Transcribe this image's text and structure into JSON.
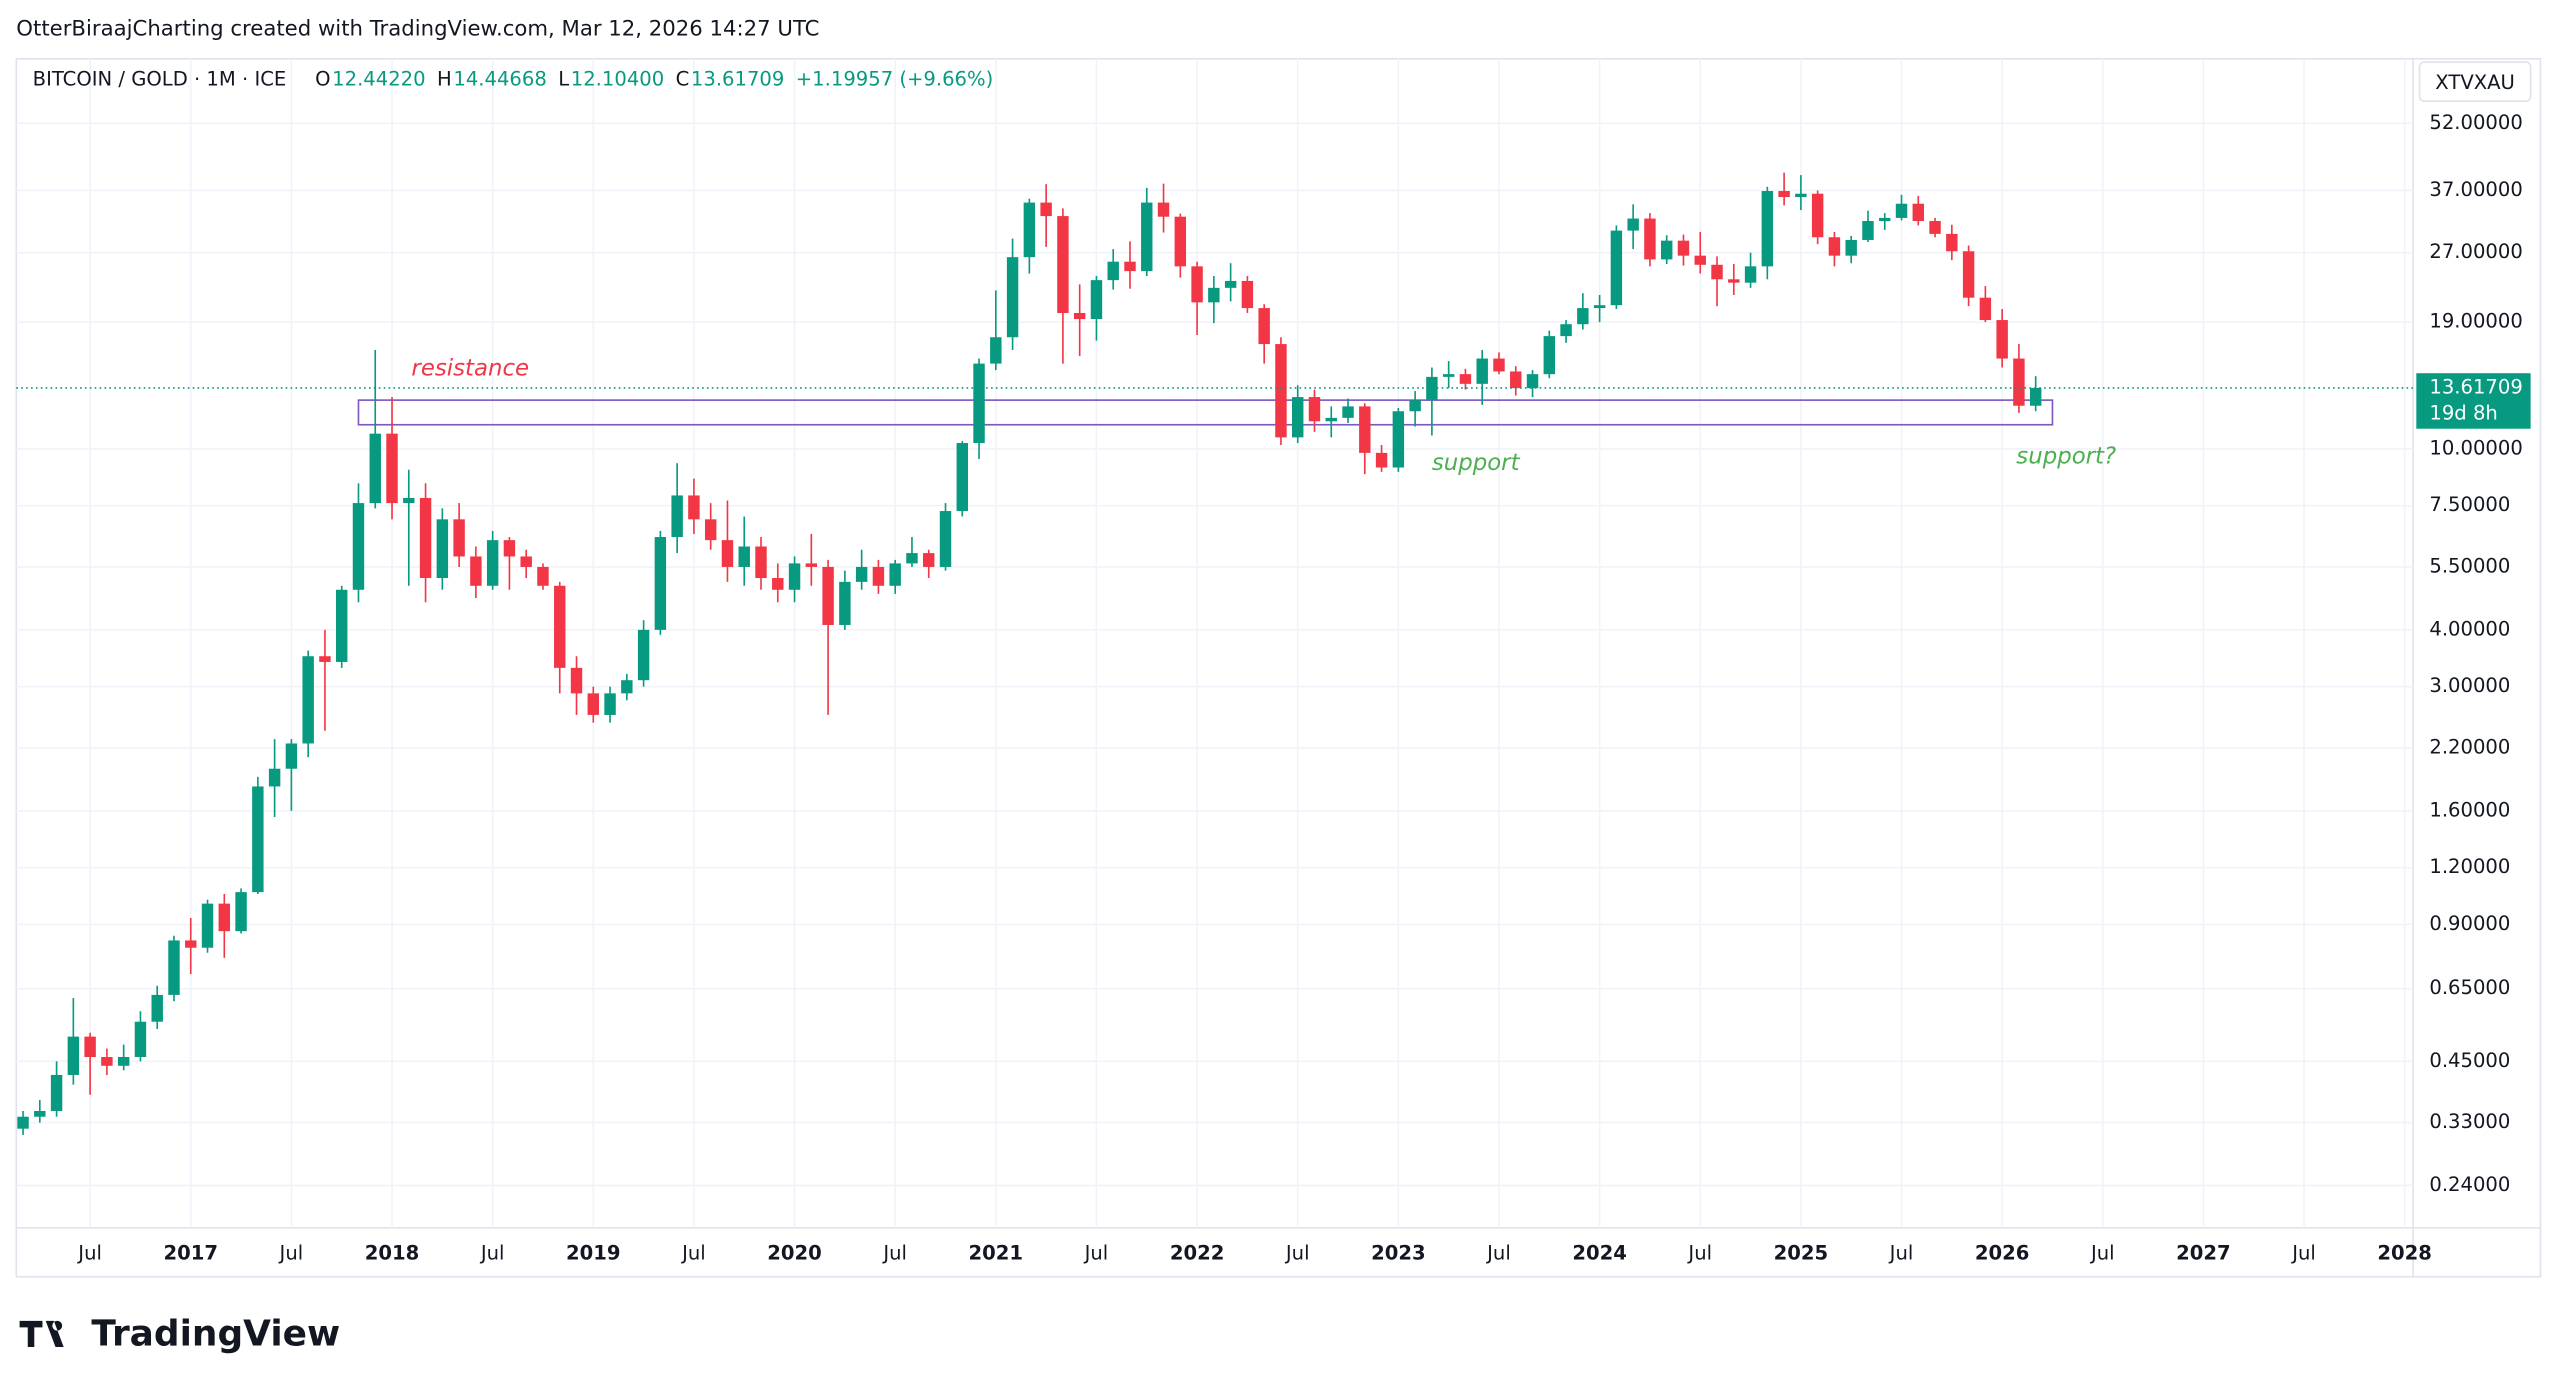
{
  "header": {
    "credit": "OtterBiraajCharting created with TradingView.com, Mar 12, 2026 14:27 UTC",
    "logo": "TradingView"
  },
  "legend": {
    "symbol": "BITCOIN / GOLD · 1M · ICE",
    "ohlc": [
      {
        "key": "O",
        "label": "12.44220"
      },
      {
        "key": "H",
        "label": "14.44668"
      },
      {
        "key": "L",
        "label": "12.10400"
      },
      {
        "key": "C",
        "label": "13.61709"
      }
    ],
    "change": "+1.19957 (+9.66%)"
  },
  "ticker_box": "XTVXAU",
  "price_label": {
    "price": "13.61709",
    "countdown": "19d 8h"
  },
  "chart_data": {
    "type": "candlestick",
    "log_scale": true,
    "grid": true,
    "up_color": "#089981",
    "down_color": "#f23645",
    "x": [
      "2016-03",
      "2016-04",
      "2016-05",
      "2016-06",
      "2016-07",
      "2016-08",
      "2016-09",
      "2016-10",
      "2016-11",
      "2016-12",
      "2017-01",
      "2017-02",
      "2017-03",
      "2017-04",
      "2017-05",
      "2017-06",
      "2017-07",
      "2017-08",
      "2017-09",
      "2017-10",
      "2017-11",
      "2017-12",
      "2018-01",
      "2018-02",
      "2018-03",
      "2018-04",
      "2018-05",
      "2018-06",
      "2018-07",
      "2018-08",
      "2018-09",
      "2018-10",
      "2018-11",
      "2018-12",
      "2019-01",
      "2019-02",
      "2019-03",
      "2019-04",
      "2019-05",
      "2019-06",
      "2019-07",
      "2019-08",
      "2019-09",
      "2019-10",
      "2019-11",
      "2019-12",
      "2020-01",
      "2020-02",
      "2020-03",
      "2020-04",
      "2020-05",
      "2020-06",
      "2020-07",
      "2020-08",
      "2020-09",
      "2020-10",
      "2020-11",
      "2020-12",
      "2021-01",
      "2021-02",
      "2021-03",
      "2021-04",
      "2021-05",
      "2021-06",
      "2021-07",
      "2021-08",
      "2021-09",
      "2021-10",
      "2021-11",
      "2021-12",
      "2022-01",
      "2022-02",
      "2022-03",
      "2022-04",
      "2022-05",
      "2022-06",
      "2022-07",
      "2022-08",
      "2022-09",
      "2022-10",
      "2022-11",
      "2022-12",
      "2023-01",
      "2023-02",
      "2023-03",
      "2023-04",
      "2023-05",
      "2023-06",
      "2023-07",
      "2023-08",
      "2023-09",
      "2023-10",
      "2023-11",
      "2023-12",
      "2024-01",
      "2024-02",
      "2024-03",
      "2024-04",
      "2024-05",
      "2024-06",
      "2024-07",
      "2024-08",
      "2024-09",
      "2024-10",
      "2024-11",
      "2024-12",
      "2025-01",
      "2025-02",
      "2025-03",
      "2025-04",
      "2025-05",
      "2025-06",
      "2025-07",
      "2025-08",
      "2025-09",
      "2025-10",
      "2025-11",
      "2025-12",
      "2026-01",
      "2026-02",
      "2026-03"
    ],
    "open": [
      0.32,
      0.34,
      0.35,
      0.42,
      0.51,
      0.46,
      0.44,
      0.46,
      0.55,
      0.63,
      0.83,
      0.8,
      1.0,
      0.87,
      1.06,
      1.81,
      1.98,
      2.25,
      3.5,
      3.4,
      4.9,
      7.6,
      10.8,
      7.6,
      7.8,
      5.2,
      7.0,
      5.8,
      5.0,
      6.3,
      5.8,
      5.5,
      5.0,
      3.3,
      2.9,
      2.6,
      2.9,
      3.1,
      4.0,
      6.4,
      7.9,
      7.0,
      6.3,
      5.5,
      6.1,
      5.2,
      4.9,
      5.6,
      5.5,
      4.1,
      5.1,
      5.5,
      5.0,
      5.6,
      5.9,
      5.5,
      7.3,
      10.3,
      15.4,
      17.6,
      26.4,
      34.8,
      32.5,
      19.9,
      19.3,
      23.5,
      25.8,
      24.6,
      34.8,
      32.4,
      25.2,
      21.0,
      22.6,
      23.4,
      20.4,
      17.0,
      10.6,
      13.0,
      11.5,
      11.7,
      12.4,
      9.8,
      9.1,
      12.1,
      12.8,
      14.4,
      14.6,
      13.9,
      15.8,
      14.8,
      13.6,
      14.6,
      17.7,
      18.8,
      20.4,
      20.7,
      30.2,
      32.1,
      26.1,
      28.7,
      26.6,
      25.4,
      23.6,
      23.2,
      25.2,
      36.9,
      35.8,
      36.4,
      29.2,
      26.6,
      28.8,
      31.7,
      32.2,
      34.6,
      31.7,
      29.7,
      27.2,
      21.5,
      19.2,
      15.8,
      12.4422
    ],
    "high": [
      0.35,
      0.37,
      0.45,
      0.62,
      0.52,
      0.48,
      0.49,
      0.58,
      0.66,
      0.85,
      0.93,
      1.02,
      1.05,
      1.08,
      1.9,
      2.3,
      2.3,
      3.6,
      4.0,
      5.0,
      8.4,
      16.5,
      13.0,
      9.0,
      8.4,
      7.4,
      7.6,
      6.1,
      6.6,
      6.4,
      6.0,
      5.6,
      5.1,
      3.5,
      3.0,
      3.0,
      3.2,
      4.2,
      6.6,
      9.3,
      8.6,
      7.6,
      7.7,
      7.1,
      6.4,
      5.6,
      5.8,
      6.5,
      5.7,
      5.4,
      6.0,
      5.7,
      5.7,
      6.4,
      6.0,
      7.6,
      10.4,
      15.8,
      22.3,
      29.0,
      35.5,
      38.2,
      33.8,
      23.0,
      24.0,
      27.5,
      28.6,
      37.5,
      38.3,
      32.9,
      25.8,
      24.0,
      25.6,
      24.0,
      20.8,
      17.6,
      13.8,
      13.5,
      12.4,
      12.9,
      12.6,
      10.2,
      12.3,
      13.4,
      15.1,
      15.6,
      15.0,
      16.5,
      16.3,
      15.2,
      14.9,
      18.2,
      19.2,
      22.0,
      21.8,
      31.0,
      34.5,
      33.0,
      29.5,
      29.6,
      30.0,
      26.5,
      25.5,
      27.0,
      37.7,
      40.5,
      40.0,
      37.0,
      30.0,
      29.4,
      33.4,
      33.0,
      36.2,
      36.0,
      32.2,
      31.1,
      28.0,
      22.8,
      20.3,
      17.0,
      14.44668
    ],
    "low": [
      0.31,
      0.33,
      0.34,
      0.4,
      0.38,
      0.42,
      0.43,
      0.45,
      0.53,
      0.61,
      0.7,
      0.78,
      0.76,
      0.86,
      1.05,
      1.55,
      1.6,
      2.1,
      2.4,
      3.3,
      4.6,
      7.4,
      7.0,
      5.0,
      4.6,
      4.9,
      5.5,
      4.7,
      4.9,
      4.9,
      5.2,
      4.9,
      2.9,
      2.6,
      2.5,
      2.5,
      2.8,
      3.0,
      3.9,
      5.9,
      6.5,
      6.0,
      5.1,
      5.0,
      4.9,
      4.6,
      4.6,
      5.0,
      2.6,
      4.0,
      4.9,
      4.8,
      4.8,
      5.5,
      5.2,
      5.4,
      7.1,
      9.5,
      14.9,
      16.5,
      24.3,
      27.8,
      15.4,
      16.0,
      17.3,
      22.4,
      22.5,
      24.0,
      29.9,
      23.8,
      17.8,
      18.9,
      21.1,
      19.9,
      15.4,
      10.2,
      10.3,
      10.9,
      10.6,
      11.4,
      8.8,
      8.9,
      8.9,
      11.2,
      10.7,
      13.6,
      13.5,
      12.5,
      14.6,
      13.1,
      13.0,
      14.3,
      17.1,
      18.3,
      19.0,
      20.3,
      27.5,
      25.2,
      25.5,
      25.3,
      24.3,
      20.6,
      21.8,
      22.6,
      23.6,
      34.3,
      33.5,
      28.2,
      25.2,
      25.6,
      28.5,
      30.3,
      31.8,
      31.0,
      29.2,
      26.0,
      20.6,
      19.0,
      15.1,
      12.0,
      12.104
    ],
    "close": [
      0.34,
      0.35,
      0.42,
      0.51,
      0.46,
      0.44,
      0.46,
      0.55,
      0.63,
      0.83,
      0.8,
      1.0,
      0.87,
      1.06,
      1.81,
      1.98,
      2.25,
      3.5,
      3.4,
      4.9,
      7.6,
      10.8,
      7.6,
      7.8,
      5.2,
      7.0,
      5.8,
      5.0,
      6.3,
      5.8,
      5.5,
      5.0,
      3.3,
      2.9,
      2.6,
      2.9,
      3.1,
      4.0,
      6.4,
      7.9,
      7.0,
      6.3,
      5.5,
      6.1,
      5.2,
      4.9,
      5.6,
      5.5,
      4.1,
      5.1,
      5.5,
      5.0,
      5.6,
      5.9,
      5.5,
      7.3,
      10.3,
      15.4,
      17.6,
      26.4,
      34.8,
      32.5,
      19.9,
      19.3,
      23.5,
      25.8,
      24.6,
      34.8,
      32.4,
      25.2,
      21.0,
      22.6,
      23.4,
      20.4,
      17.0,
      10.6,
      13.0,
      11.5,
      11.7,
      12.4,
      9.8,
      9.1,
      12.1,
      12.8,
      14.4,
      14.6,
      13.9,
      15.8,
      14.8,
      13.6,
      14.6,
      17.7,
      18.8,
      20.4,
      20.7,
      30.2,
      32.1,
      26.1,
      28.7,
      26.6,
      25.4,
      23.6,
      23.2,
      25.2,
      36.9,
      35.8,
      36.4,
      29.2,
      26.6,
      28.8,
      31.7,
      32.2,
      34.6,
      31.7,
      29.7,
      27.2,
      21.5,
      19.2,
      15.8,
      12.4422,
      13.61709
    ],
    "ylim": [
      0.197,
      70.9
    ],
    "yticks": [
      {
        "value": 0.24,
        "label": "0.24000"
      },
      {
        "value": 0.33,
        "label": "0.33000"
      },
      {
        "value": 0.45,
        "label": "0.45000"
      },
      {
        "value": 0.65,
        "label": "0.65000"
      },
      {
        "value": 0.9,
        "label": "0.90000"
      },
      {
        "value": 1.2,
        "label": "1.20000"
      },
      {
        "value": 1.6,
        "label": "1.60000"
      },
      {
        "value": 2.2,
        "label": "2.20000"
      },
      {
        "value": 3,
        "label": "3.00000"
      },
      {
        "value": 4,
        "label": "4.00000"
      },
      {
        "value": 5.5,
        "label": "5.50000"
      },
      {
        "value": 7.5,
        "label": "7.50000"
      },
      {
        "value": 10,
        "label": "10.00000"
      },
      {
        "value": 19,
        "label": "19.00000"
      },
      {
        "value": 27,
        "label": "27.00000"
      },
      {
        "value": 37,
        "label": "37.00000"
      },
      {
        "value": 52,
        "label": "52.00000"
      }
    ],
    "xticks": [
      {
        "value": "2016-07",
        "label": "Jul"
      },
      {
        "value": "2017-01",
        "label": "2017"
      },
      {
        "value": "2017-07",
        "label": "Jul"
      },
      {
        "value": "2018-01",
        "label": "2018"
      },
      {
        "value": "2018-07",
        "label": "Jul"
      },
      {
        "value": "2019-01",
        "label": "2019"
      },
      {
        "value": "2019-07",
        "label": "Jul"
      },
      {
        "value": "2020-01",
        "label": "2020"
      },
      {
        "value": "2020-07",
        "label": "Jul"
      },
      {
        "value": "2021-01",
        "label": "2021"
      },
      {
        "value": "2021-07",
        "label": "Jul"
      },
      {
        "value": "2022-01",
        "label": "2022"
      },
      {
        "value": "2022-07",
        "label": "Jul"
      },
      {
        "value": "2023-01",
        "label": "2023"
      },
      {
        "value": "2023-07",
        "label": "Jul"
      },
      {
        "value": "2024-01",
        "label": "2024"
      },
      {
        "value": "2024-07",
        "label": "Jul"
      },
      {
        "value": "2025-01",
        "label": "2025"
      },
      {
        "value": "2025-07",
        "label": "Jul"
      },
      {
        "value": "2026-01",
        "label": "2026"
      },
      {
        "value": "2026-07",
        "label": "Jul"
      },
      {
        "value": "2027-01",
        "label": "2027"
      },
      {
        "value": "2027-07",
        "label": "Jul"
      },
      {
        "value": "2028-01",
        "label": "2028"
      }
    ],
    "zone": {
      "x": [
        "2017-11",
        "2026-04"
      ],
      "y": [
        11.3,
        12.8
      ],
      "color": "#7e57c2"
    },
    "annotations": [
      {
        "text": "resistance",
        "color": "#f23645"
      },
      {
        "text": "support",
        "color": "#4caf50"
      },
      {
        "text": "support?",
        "color": "#4caf50"
      }
    ]
  }
}
